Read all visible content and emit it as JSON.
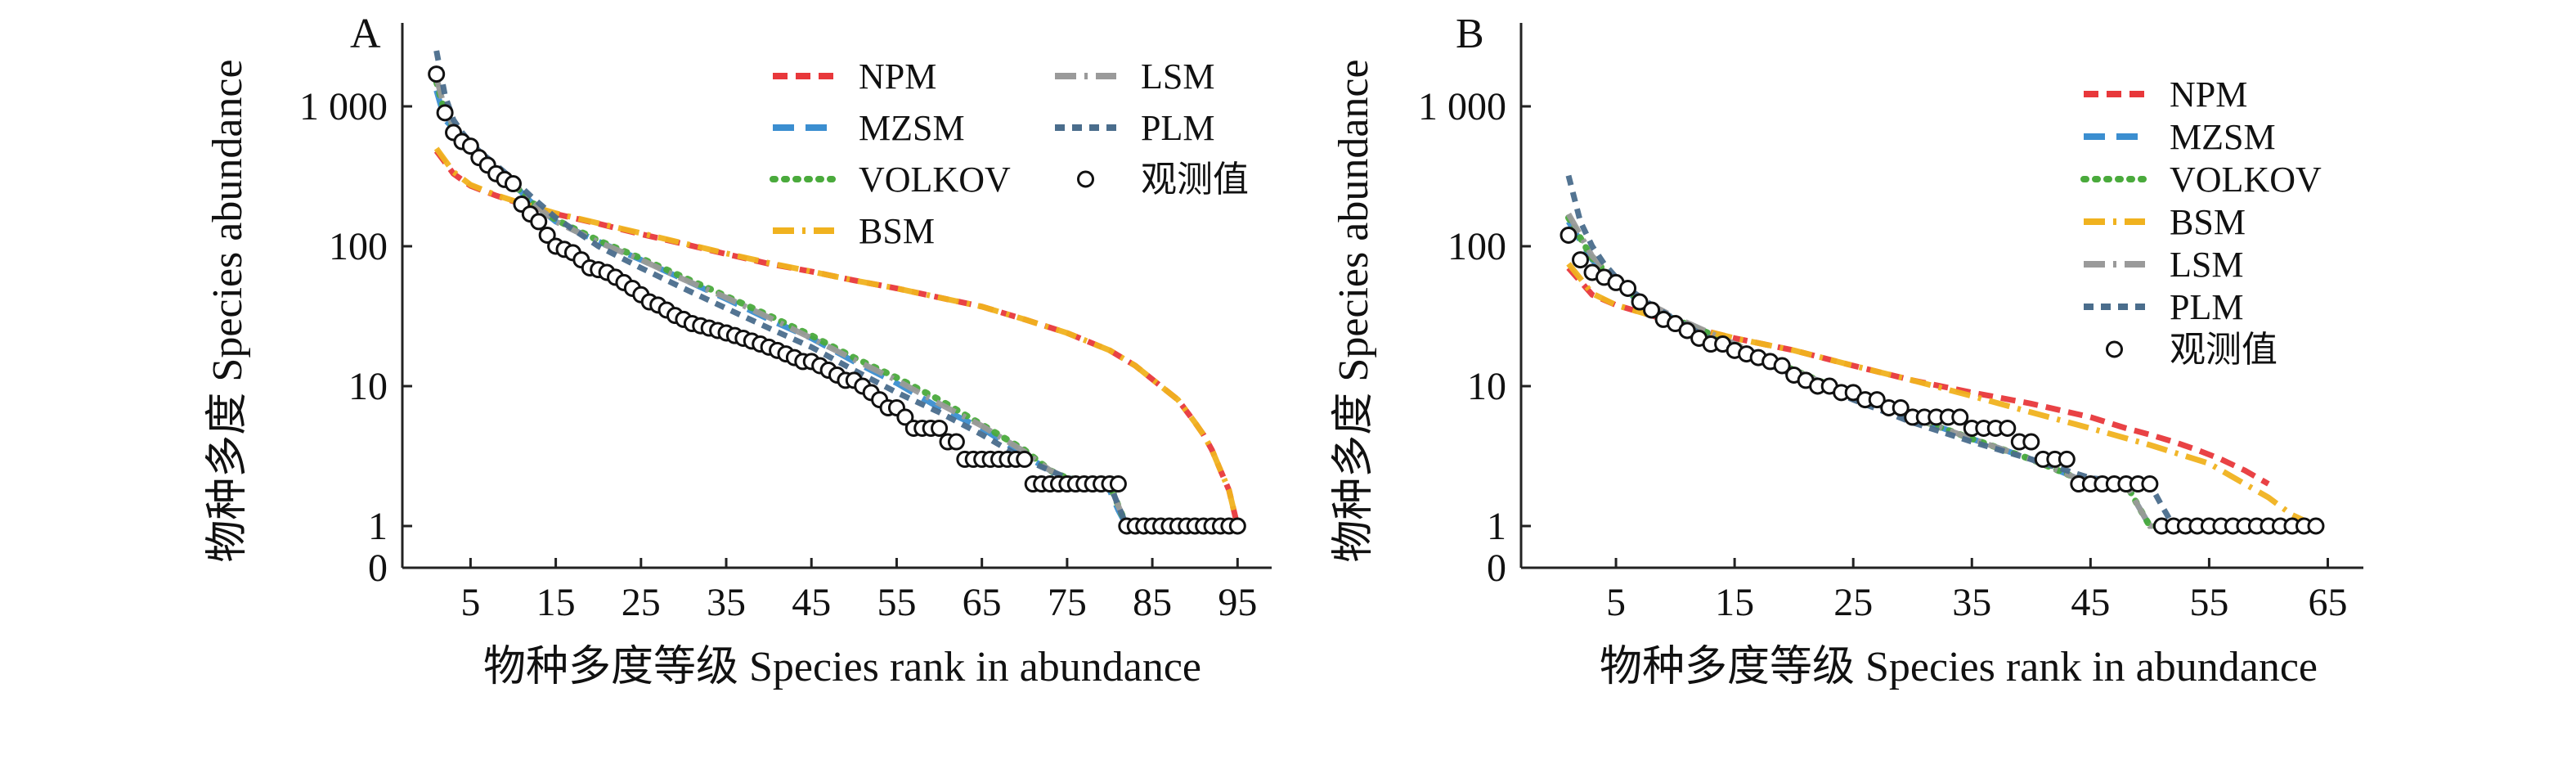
{
  "figure": {
    "ylabel": "物种多度 Species abundance",
    "xlabel": "物种多度等级 Species rank in abundance"
  },
  "chart_data": [
    {
      "type": "line",
      "panel": "A",
      "xlabel": "物种多度等级 Species rank in abundance",
      "ylabel": "物种多度 Species abundance",
      "yscale": "log",
      "xlim": [
        -3,
        99
      ],
      "x_ticks": [
        5,
        15,
        25,
        35,
        45,
        55,
        65,
        75,
        85,
        95
      ],
      "y_ticks": [
        0,
        1,
        10,
        100,
        1000
      ],
      "y_tick_labels": [
        "0",
        "1",
        "10",
        "100",
        "1 000"
      ],
      "legend": {
        "placement": "top-right",
        "columns": 2
      },
      "series": [
        {
          "name": "NPM",
          "color": "#e8383b",
          "dash": "solid",
          "x": [
            1,
            3,
            5,
            8,
            10,
            15,
            20,
            25,
            30,
            35,
            40,
            45,
            50,
            55,
            60,
            65,
            70,
            75,
            80,
            83,
            86,
            88,
            90,
            91,
            92,
            93,
            94,
            95
          ],
          "y": [
            480,
            330,
            270,
            230,
            210,
            170,
            145,
            122,
            104,
            88,
            75,
            66,
            57,
            50,
            43,
            37,
            30,
            24,
            18,
            14,
            10,
            8,
            5.5,
            4.5,
            3.5,
            2.5,
            1.8,
            1
          ]
        },
        {
          "name": "MZSM",
          "color": "#3b8ed0",
          "dash": "dash",
          "x": [
            1,
            2,
            3,
            5,
            7,
            10,
            12,
            15,
            20,
            25,
            30,
            35,
            40,
            45,
            50,
            55,
            60,
            65,
            70,
            73,
            75,
            79,
            80,
            81,
            82,
            95
          ],
          "y": [
            1300,
            800,
            700,
            500,
            400,
            280,
            210,
            150,
            108,
            80,
            58,
            42,
            30,
            22,
            15,
            10.5,
            7,
            5,
            3.2,
            2.5,
            2,
            2,
            1.8,
            1.3,
            1,
            1
          ]
        },
        {
          "name": "VOLKOV",
          "color": "#4aaa3c",
          "dash": "dot",
          "x": [
            1,
            2,
            3,
            5,
            7,
            10,
            12,
            15,
            20,
            25,
            30,
            35,
            40,
            45,
            50,
            55,
            60,
            65,
            70,
            73,
            75,
            80,
            81,
            82,
            95
          ],
          "y": [
            1500,
            900,
            700,
            500,
            400,
            280,
            210,
            155,
            110,
            82,
            60,
            44,
            32,
            23,
            16,
            11.5,
            8,
            5.3,
            3.5,
            2.5,
            2.2,
            2,
            1.4,
            1,
            1
          ]
        },
        {
          "name": "BSM",
          "color": "#f0b21f",
          "dash": "dashdot",
          "x": [
            1,
            3,
            5,
            8,
            10,
            15,
            20,
            25,
            30,
            35,
            40,
            45,
            50,
            55,
            60,
            65,
            70,
            75,
            80,
            83,
            86,
            88,
            90,
            91,
            92,
            93,
            94,
            95
          ],
          "y": [
            500,
            340,
            275,
            232,
            212,
            172,
            146,
            124,
            105,
            89,
            76,
            66,
            57,
            50,
            43,
            37,
            30,
            24,
            18,
            14,
            10,
            8,
            5.5,
            4.5,
            3.5,
            2.5,
            1.8,
            1
          ]
        },
        {
          "name": "LSM",
          "color": "#9a9a9a",
          "dash": "dashdot",
          "x": [
            1,
            2,
            3,
            5,
            7,
            10,
            12,
            15,
            20,
            25,
            30,
            35,
            40,
            45,
            50,
            55,
            60,
            65,
            70,
            73,
            75,
            80,
            81,
            82,
            95
          ],
          "y": [
            1600,
            950,
            720,
            510,
            400,
            280,
            210,
            150,
            107,
            80,
            58,
            43,
            31,
            22,
            15.5,
            11,
            7.5,
            5.2,
            3.4,
            2.5,
            2.2,
            2,
            1.4,
            1,
            1
          ]
        },
        {
          "name": "PLM",
          "color": "#4a6d8c",
          "dash": "shortdash",
          "x": [
            1,
            2,
            3,
            4,
            5,
            6,
            8,
            10,
            12,
            15,
            20,
            25,
            30,
            35,
            40,
            45,
            50,
            55,
            60,
            65,
            70,
            75,
            80,
            81,
            82,
            95
          ],
          "y": [
            2500,
            1200,
            800,
            650,
            550,
            480,
            380,
            300,
            230,
            160,
            100,
            70,
            50,
            36,
            26,
            19,
            13,
            9,
            6.5,
            4.5,
            3,
            2.2,
            2,
            1.4,
            1,
            1
          ]
        },
        {
          "name": "观测值",
          "color": "#111111",
          "marker": "open-circle",
          "x": [
            1,
            2,
            3,
            4,
            5,
            6,
            7,
            8,
            9,
            10,
            11,
            12,
            13,
            14,
            15,
            16,
            17,
            18,
            19,
            20,
            21,
            22,
            23,
            24,
            25,
            26,
            27,
            28,
            29,
            30,
            31,
            32,
            33,
            34,
            35,
            36,
            37,
            38,
            39,
            40,
            41,
            42,
            43,
            44,
            45,
            46,
            47,
            48,
            49,
            50,
            51,
            52,
            53,
            54,
            55,
            56,
            57,
            58,
            59,
            60,
            61,
            62,
            63,
            64,
            65,
            66,
            67,
            68,
            69,
            70,
            71,
            72,
            73,
            74,
            75,
            76,
            77,
            78,
            79,
            80,
            81,
            82,
            83,
            84,
            85,
            86,
            87,
            88,
            89,
            90,
            91,
            92,
            93,
            94,
            95
          ],
          "y": [
            1700,
            900,
            650,
            560,
            520,
            430,
            380,
            330,
            300,
            280,
            200,
            170,
            150,
            120,
            100,
            95,
            90,
            80,
            70,
            68,
            65,
            60,
            55,
            50,
            45,
            40,
            38,
            35,
            32,
            30,
            28,
            27,
            26,
            25,
            24,
            23,
            22,
            21,
            20,
            19,
            18,
            17,
            16,
            15,
            15,
            14,
            13,
            12,
            11,
            11,
            10,
            9,
            8,
            7,
            7,
            6,
            5,
            5,
            5,
            5,
            4,
            4,
            3,
            3,
            3,
            3,
            3,
            3,
            3,
            3,
            2,
            2,
            2,
            2,
            2,
            2,
            2,
            2,
            2,
            2,
            2,
            1,
            1,
            1,
            1,
            1,
            1,
            1,
            1,
            1,
            1,
            1,
            1,
            1,
            1
          ]
        }
      ]
    },
    {
      "type": "line",
      "panel": "B",
      "xlabel": "物种多度等级 Species rank in abundance",
      "ylabel": "物种多度 Species abundance",
      "yscale": "log",
      "xlim": [
        -3,
        68
      ],
      "x_ticks": [
        5,
        15,
        25,
        35,
        45,
        55,
        65
      ],
      "y_ticks": [
        0,
        1,
        10,
        100,
        1000
      ],
      "y_tick_labels": [
        "0",
        "1",
        "10",
        "100",
        "1 000"
      ],
      "legend": {
        "placement": "top-right",
        "columns": 1
      },
      "series": [
        {
          "name": "NPM",
          "color": "#e8383b",
          "dash": "solid",
          "x": [
            1,
            3,
            5,
            8,
            10,
            15,
            20,
            25,
            30,
            35,
            40,
            45,
            48,
            50,
            52,
            54,
            56,
            58,
            60
          ],
          "y": [
            70,
            45,
            38,
            32,
            28,
            22,
            18,
            14,
            11,
            9,
            7.5,
            6,
            5,
            4.5,
            4,
            3.5,
            3,
            2.5,
            2
          ]
        },
        {
          "name": "MZSM",
          "color": "#3b8ed0",
          "dash": "dash",
          "x": [
            1,
            3,
            5,
            7,
            10,
            15,
            20,
            25,
            30,
            35,
            40,
            45,
            48,
            49,
            50,
            64
          ],
          "y": [
            150,
            80,
            55,
            40,
            30,
            20,
            13,
            8.5,
            6,
            4.2,
            3,
            2,
            2,
            1.4,
            1,
            1
          ]
        },
        {
          "name": "VOLKOV",
          "color": "#4aaa3c",
          "dash": "dot",
          "x": [
            1,
            3,
            5,
            7,
            10,
            15,
            20,
            25,
            30,
            35,
            40,
            45,
            48,
            49,
            50,
            64
          ],
          "y": [
            160,
            82,
            56,
            41,
            30,
            20,
            13,
            8.6,
            6,
            4.2,
            3,
            2,
            2,
            1.4,
            1,
            1
          ]
        },
        {
          "name": "BSM",
          "color": "#f0b21f",
          "dash": "dashdot",
          "x": [
            1,
            3,
            5,
            8,
            10,
            15,
            20,
            25,
            30,
            35,
            40,
            45,
            50,
            55,
            58,
            60,
            62,
            64
          ],
          "y": [
            75,
            46,
            38,
            32,
            28,
            22,
            18,
            14,
            11,
            8.5,
            6.5,
            5,
            3.8,
            2.8,
            2,
            1.6,
            1.2,
            1
          ]
        },
        {
          "name": "LSM",
          "color": "#9a9a9a",
          "dash": "dashdot",
          "x": [
            1,
            3,
            5,
            7,
            10,
            15,
            20,
            25,
            30,
            35,
            40,
            45,
            48,
            49,
            50,
            64
          ],
          "y": [
            170,
            85,
            57,
            42,
            31,
            20,
            13,
            8.5,
            6,
            4.2,
            3,
            2,
            2,
            1.4,
            1,
            1
          ]
        },
        {
          "name": "PLM",
          "color": "#4a6d8c",
          "dash": "shortdash",
          "x": [
            1,
            2,
            3,
            4,
            5,
            6,
            8,
            10,
            12,
            15,
            20,
            25,
            30,
            35,
            40,
            45,
            50,
            51,
            52,
            64
          ],
          "y": [
            320,
            150,
            100,
            75,
            60,
            50,
            38,
            30,
            24,
            18,
            12,
            8,
            5.5,
            4,
            3,
            2.2,
            2,
            1.4,
            1,
            1
          ]
        },
        {
          "name": "观测值",
          "color": "#111111",
          "marker": "open-circle",
          "x": [
            1,
            2,
            3,
            4,
            5,
            6,
            7,
            8,
            9,
            10,
            11,
            12,
            13,
            14,
            15,
            16,
            17,
            18,
            19,
            20,
            21,
            22,
            23,
            24,
            25,
            26,
            27,
            28,
            29,
            30,
            31,
            32,
            33,
            34,
            35,
            36,
            37,
            38,
            39,
            40,
            41,
            42,
            43,
            44,
            45,
            46,
            47,
            48,
            49,
            50,
            51,
            52,
            53,
            54,
            55,
            56,
            57,
            58,
            59,
            60,
            61,
            62,
            63,
            64
          ],
          "y": [
            120,
            80,
            65,
            60,
            55,
            50,
            40,
            35,
            30,
            28,
            25,
            22,
            20,
            20,
            18,
            17,
            16,
            15,
            14,
            12,
            11,
            10,
            10,
            9,
            9,
            8,
            8,
            7,
            7,
            6,
            6,
            6,
            6,
            6,
            5,
            5,
            5,
            5,
            4,
            4,
            3,
            3,
            3,
            2,
            2,
            2,
            2,
            2,
            2,
            2,
            1,
            1,
            1,
            1,
            1,
            1,
            1,
            1,
            1,
            1,
            1,
            1,
            1,
            1
          ]
        }
      ]
    }
  ]
}
